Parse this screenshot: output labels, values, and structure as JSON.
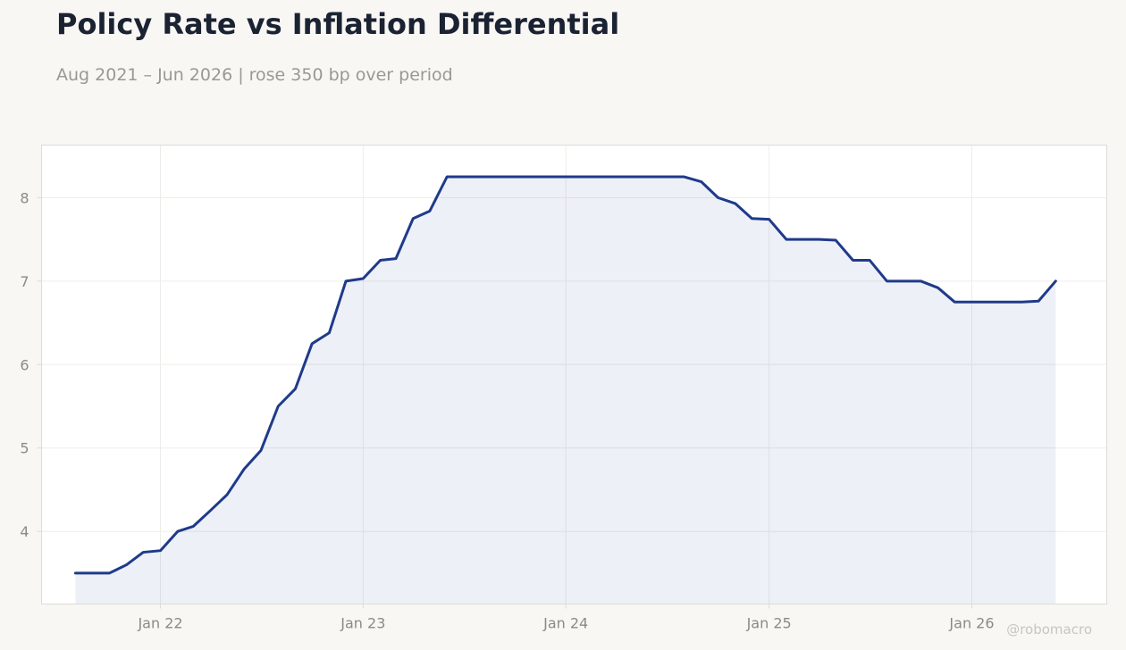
{
  "title": "Policy Rate vs Inflation Differential",
  "subtitle": "Aug 2021 – Jun 2026 | rose 350 bp over period",
  "watermark": "@robomacro",
  "colors": {
    "page_background": "#f8f7f4",
    "plot_background": "#ffffff",
    "plot_border": "#dddbd5",
    "grid": "#eeedea",
    "line": "#1f3a8a",
    "area_fill": "#1f3a8a",
    "title": "#1b2333",
    "subtitle": "#9a9892",
    "tick_label": "#8c8a85",
    "watermark": "#c8c6c1"
  },
  "chart_data": {
    "type": "area",
    "title": "Policy Rate vs Inflation Differential",
    "subtitle": "Aug 2021 – Jun 2026 | rose 350 bp over period",
    "xlabel": "",
    "ylabel": "",
    "x_axis": "date",
    "xlim": [
      "2021-06-01",
      "2026-09-01"
    ],
    "ylim": [
      3.13,
      8.63
    ],
    "grid": true,
    "legend": "none",
    "x_ticks": [
      {
        "date": "2022-01-01",
        "label": "Jan 22"
      },
      {
        "date": "2023-01-01",
        "label": "Jan 23"
      },
      {
        "date": "2024-01-01",
        "label": "Jan 24"
      },
      {
        "date": "2025-01-01",
        "label": "Jan 25"
      },
      {
        "date": "2026-01-01",
        "label": "Jan 26"
      }
    ],
    "y_ticks": [
      4,
      5,
      6,
      7,
      8
    ],
    "series": [
      {
        "x": [
          "2021-08-01",
          "2021-09-01",
          "2021-10-01",
          "2021-11-01",
          "2021-12-01",
          "2022-01-01",
          "2022-02-01",
          "2022-03-01",
          "2022-04-01",
          "2022-05-01",
          "2022-06-01",
          "2022-07-01",
          "2022-08-01",
          "2022-09-01",
          "2022-10-01",
          "2022-11-01",
          "2022-12-01",
          "2023-01-01",
          "2023-02-01",
          "2023-03-01",
          "2023-04-01",
          "2023-05-01",
          "2023-06-01",
          "2023-07-01",
          "2023-08-01",
          "2023-09-01",
          "2023-10-01",
          "2023-11-01",
          "2023-12-01",
          "2024-01-01",
          "2024-02-01",
          "2024-03-01",
          "2024-04-01",
          "2024-05-01",
          "2024-06-01",
          "2024-07-01",
          "2024-08-01",
          "2024-09-01",
          "2024-10-01",
          "2024-11-01",
          "2024-12-01",
          "2025-01-01",
          "2025-02-01",
          "2025-03-01",
          "2025-04-01",
          "2025-05-01",
          "2025-06-01",
          "2025-07-01",
          "2025-08-01",
          "2025-09-01",
          "2025-10-01",
          "2025-11-01",
          "2025-12-01",
          "2026-01-01",
          "2026-02-01",
          "2026-03-01",
          "2026-04-01",
          "2026-05-01",
          "2026-06-01"
        ],
        "y": [
          3.5,
          3.5,
          3.5,
          3.6,
          3.75,
          3.77,
          4.0,
          4.06,
          4.25,
          4.44,
          4.75,
          4.97,
          5.5,
          5.71,
          6.25,
          6.38,
          7.0,
          7.03,
          7.25,
          7.27,
          7.75,
          7.84,
          8.25,
          8.25,
          8.25,
          8.25,
          8.25,
          8.25,
          8.25,
          8.25,
          8.25,
          8.25,
          8.25,
          8.25,
          8.25,
          8.25,
          8.25,
          8.19,
          8.0,
          7.93,
          7.75,
          7.74,
          7.5,
          7.5,
          7.5,
          7.49,
          7.25,
          7.25,
          7.0,
          7.0,
          7.0,
          6.92,
          6.75,
          6.75,
          6.75,
          6.75,
          6.75,
          6.76,
          7.0
        ]
      }
    ]
  }
}
